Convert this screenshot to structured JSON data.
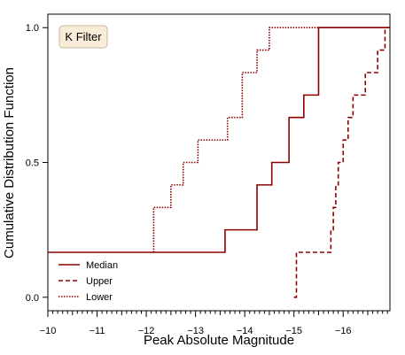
{
  "chart_data": {
    "type": "line",
    "step": true,
    "title": "",
    "annotation": "K Filter",
    "xlabel": "Peak Absolute Magnitude",
    "ylabel": "Cumulative Distribution Function",
    "xlim": [
      -10,
      -16.95
    ],
    "x_inverted": true,
    "ylim": [
      -0.05,
      1.05
    ],
    "x_ticks": [
      -10,
      -11,
      -12,
      -13,
      -14,
      -15,
      -16
    ],
    "x_tick_labels": [
      "−10",
      "−11",
      "−12",
      "−13",
      "−14",
      "−15",
      "−16"
    ],
    "y_ticks": [
      0.0,
      0.5,
      1.0
    ],
    "y_tick_labels": [
      "0.0",
      "0.5",
      "1.0"
    ],
    "grid": false,
    "legend_position": "bottom-left",
    "line_color": "#8b0000",
    "series": [
      {
        "name": "Median",
        "style": "solid",
        "x": [
          -10,
          -13.6,
          -14.25,
          -14.55,
          -14.9,
          -15.2,
          -15.5,
          -16.95
        ],
        "y": [
          0.1667,
          0.25,
          0.4167,
          0.5,
          0.6667,
          0.75,
          1.0,
          1.0
        ]
      },
      {
        "name": "Upper",
        "style": "dashed",
        "x": [
          -15.0,
          -15.05,
          -15.75,
          -15.8,
          -15.85,
          -15.9,
          -16.0,
          -16.1,
          -16.2,
          -16.45,
          -16.7,
          -16.85,
          -16.95
        ],
        "y": [
          0.0,
          0.1667,
          0.25,
          0.3333,
          0.4167,
          0.5,
          0.5833,
          0.6667,
          0.75,
          0.8333,
          0.9167,
          1.0,
          1.0
        ]
      },
      {
        "name": "Lower",
        "style": "dotted",
        "x": [
          -12.15,
          -12.5,
          -12.75,
          -13.05,
          -13.65,
          -13.95,
          -14.25,
          -14.5,
          -15.5
        ],
        "y": [
          0.3333,
          0.4167,
          0.5,
          0.5833,
          0.6667,
          0.8333,
          0.9167,
          1.0,
          1.0
        ],
        "start_y": 0.1667
      }
    ]
  }
}
